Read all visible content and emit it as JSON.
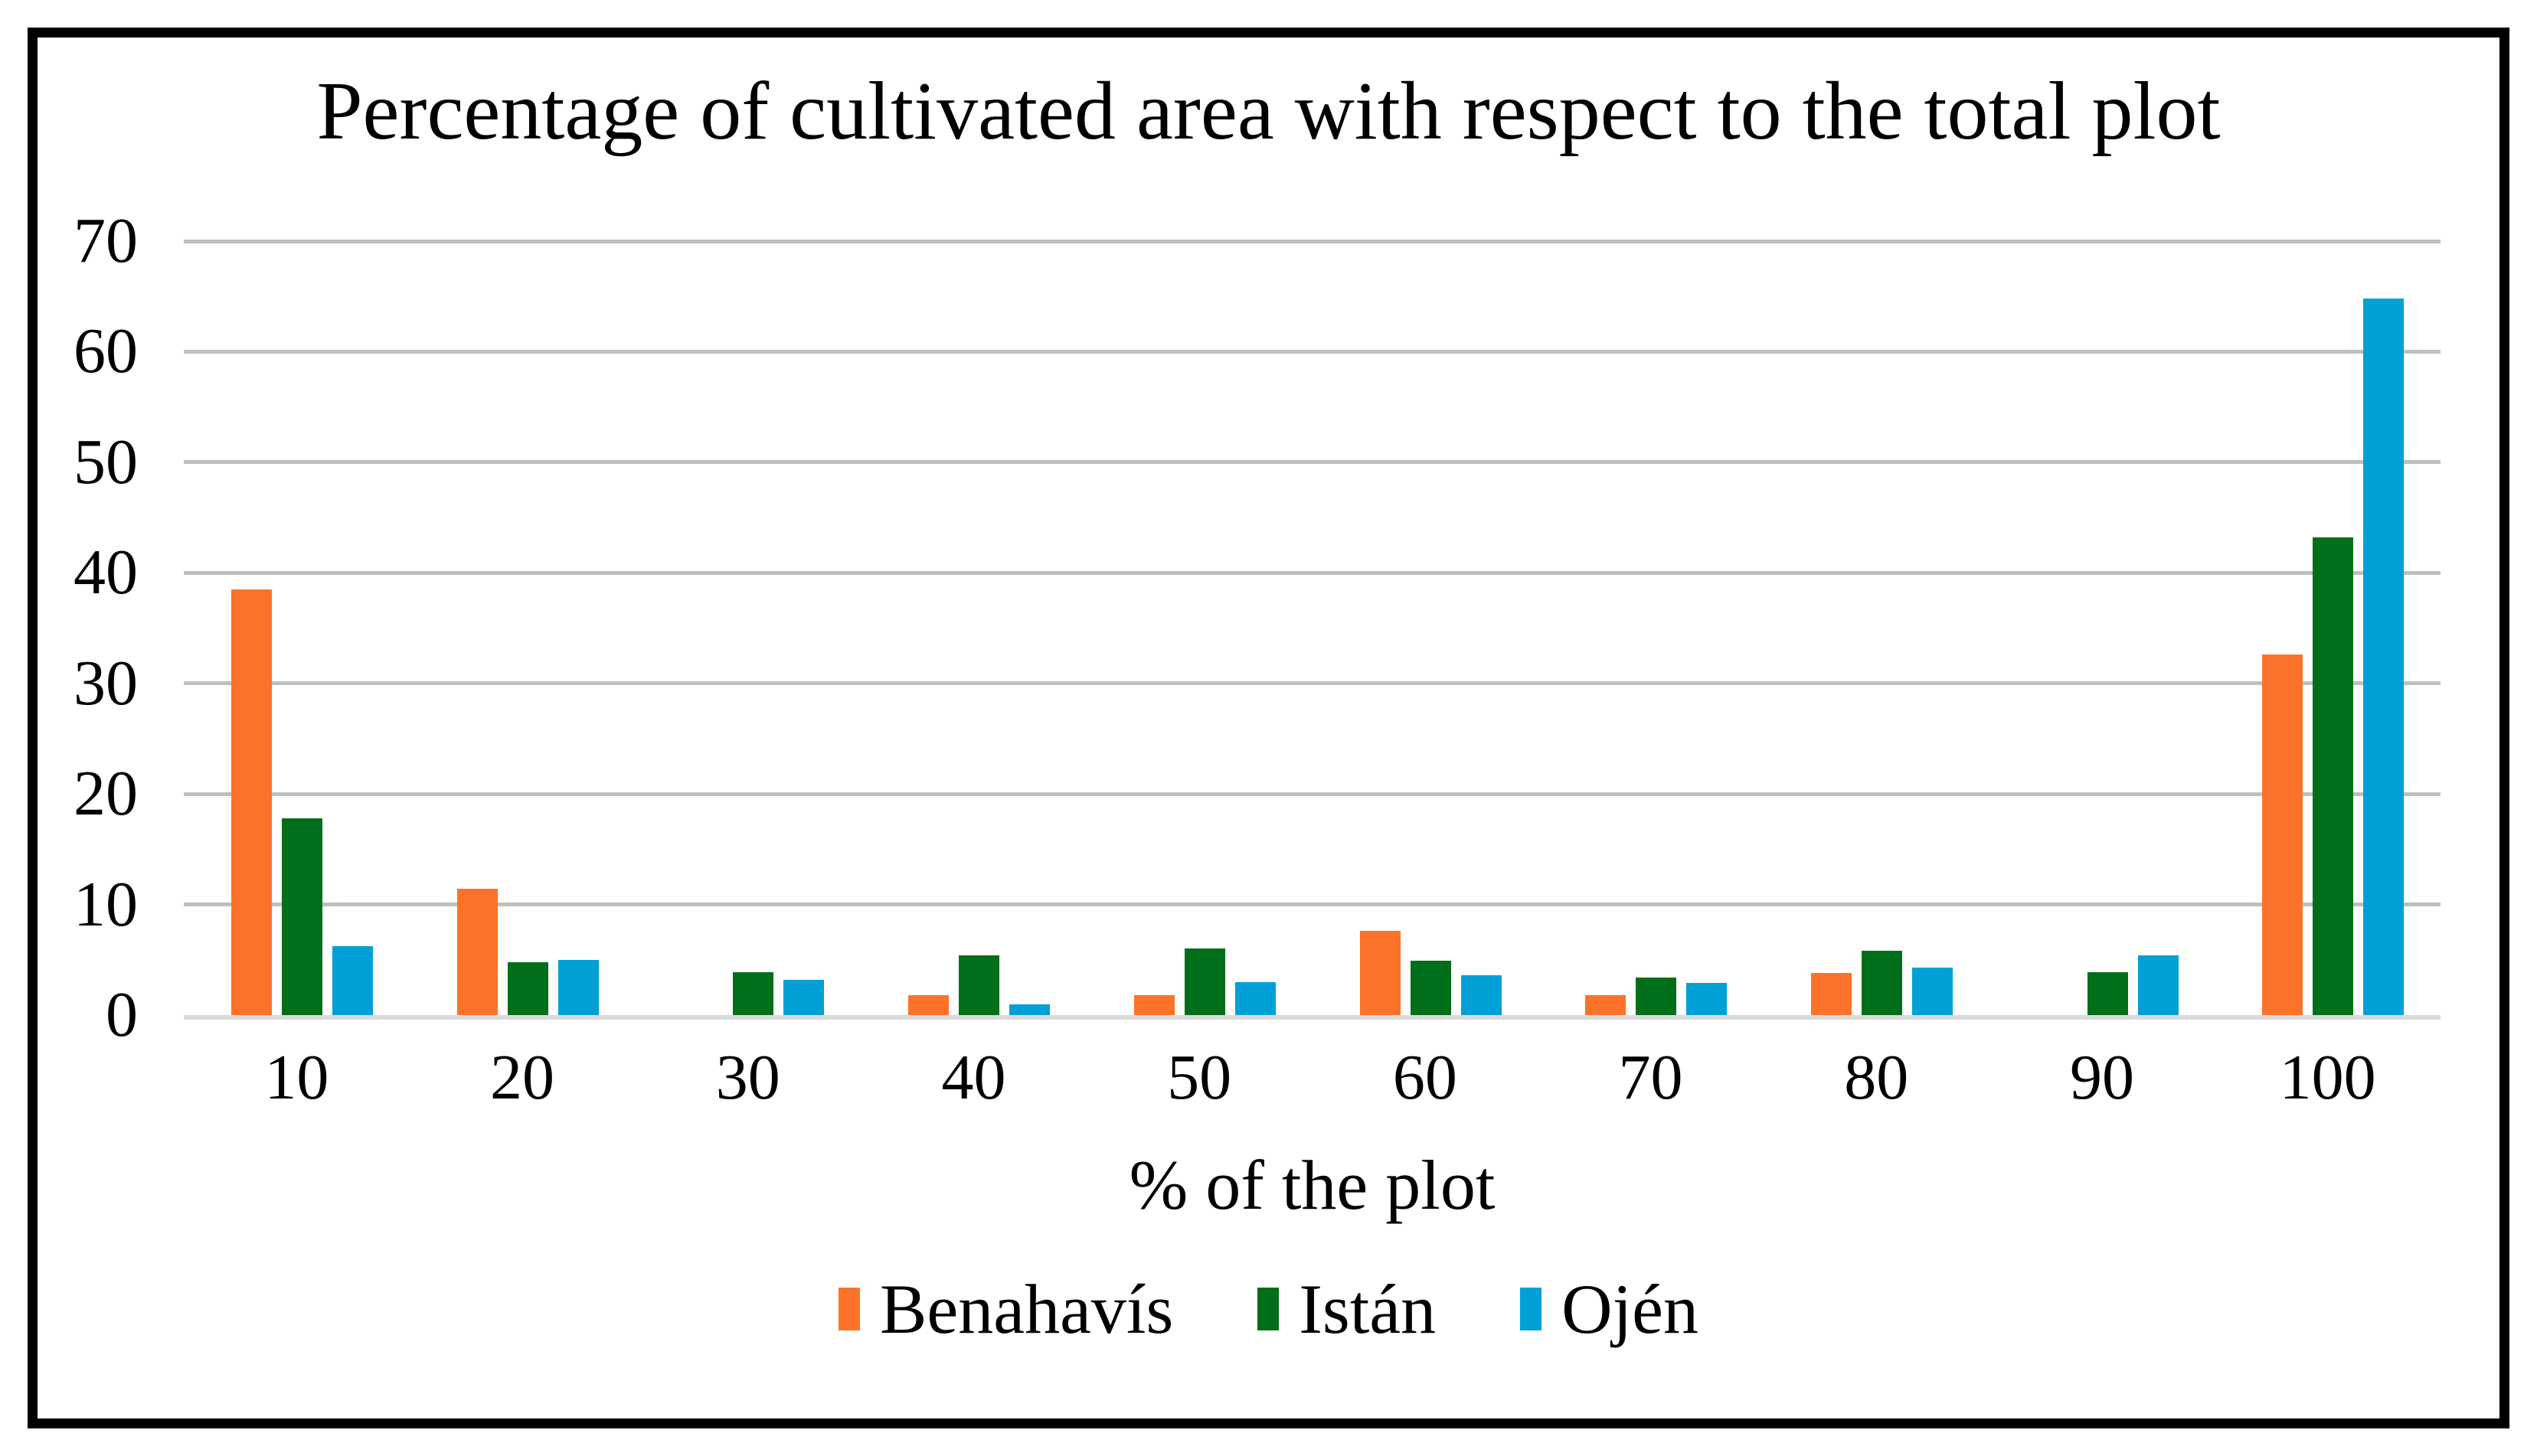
{
  "figure": {
    "title": "Percentage of cultivated area with respect to the total plot",
    "x_axis_title": "% of the plot"
  },
  "chart_data": {
    "type": "bar",
    "title": "Percentage of cultivated area with respect to the total plot",
    "xlabel": "% of the plot",
    "ylabel": "",
    "ylim": [
      0,
      70
    ],
    "yticks": [
      0,
      10,
      20,
      30,
      40,
      50,
      60,
      70
    ],
    "grid": "horizontal",
    "legend_position": "bottom",
    "categories": [
      "10",
      "20",
      "30",
      "40",
      "50",
      "60",
      "70",
      "80",
      "90",
      "100"
    ],
    "series": [
      {
        "name": "Benahavís",
        "color": "#FC7229",
        "values": [
          38.5,
          11.4,
          0,
          1.8,
          1.8,
          7.6,
          1.8,
          3.8,
          0,
          32.6
        ]
      },
      {
        "name": "Istán",
        "color": "#016E19",
        "values": [
          17.8,
          4.8,
          3.9,
          5.4,
          6.0,
          4.9,
          3.4,
          5.8,
          3.9,
          43.2
        ]
      },
      {
        "name": "Ojén",
        "color": "#00A0D6",
        "values": [
          6.2,
          5.0,
          3.2,
          1.0,
          3.0,
          3.6,
          2.9,
          4.3,
          5.4,
          64.8
        ]
      }
    ],
    "colors": {
      "grid": "#BFBFBF",
      "axis_line": "#D9D9D9",
      "text": "#000000",
      "frame": "#000000",
      "background": "#FFFFFF"
    }
  }
}
